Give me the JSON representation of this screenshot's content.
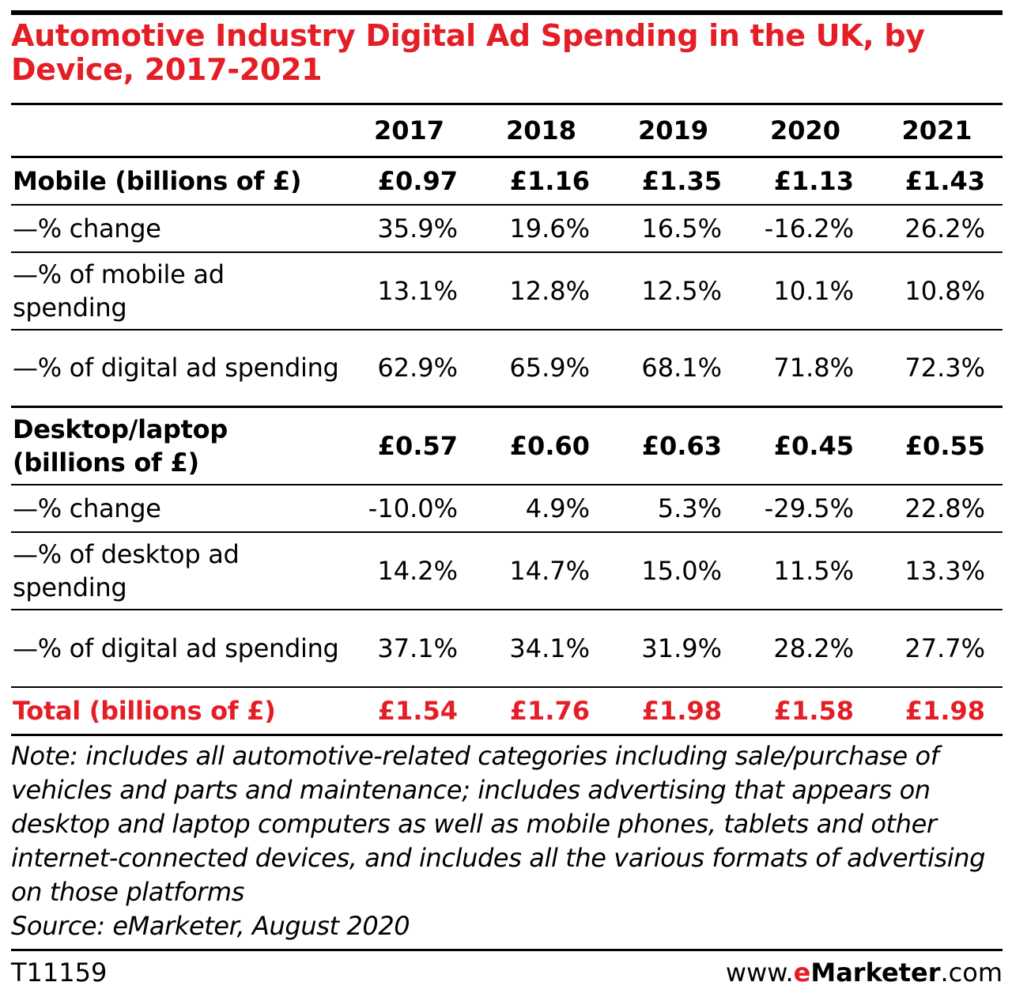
{
  "title": "Automotive Industry Digital Ad Spending in the UK, by Device, 2017-2021",
  "years": [
    "2017",
    "2018",
    "2019",
    "2020",
    "2021"
  ],
  "rows": [
    {
      "label": "Mobile (billions of £)",
      "values": [
        "£0.97",
        "£1.16",
        "£1.35",
        "£1.13",
        "£1.43"
      ]
    },
    {
      "label": "—% change",
      "values": [
        "35.9%",
        "19.6%",
        "16.5%",
        "-16.2%",
        "26.2%"
      ]
    },
    {
      "label": "—% of mobile ad spending",
      "values": [
        "13.1%",
        "12.8%",
        "12.5%",
        "10.1%",
        "10.8%"
      ]
    },
    {
      "label": "—% of digital ad spending",
      "values": [
        "62.9%",
        "65.9%",
        "68.1%",
        "71.8%",
        "72.3%"
      ]
    },
    {
      "label": "Desktop/laptop (billions of £)",
      "values": [
        "£0.57",
        "£0.60",
        "£0.63",
        "£0.45",
        "£0.55"
      ]
    },
    {
      "label": "—% change",
      "values": [
        "-10.0%",
        "4.9%",
        "5.3%",
        "-29.5%",
        "22.8%"
      ]
    },
    {
      "label": "—% of desktop ad spending",
      "values": [
        "14.2%",
        "14.7%",
        "15.0%",
        "11.5%",
        "13.3%"
      ]
    },
    {
      "label": "—% of digital ad spending",
      "values": [
        "37.1%",
        "34.1%",
        "31.9%",
        "28.2%",
        "27.7%"
      ]
    },
    {
      "label": "Total (billions of £)",
      "values": [
        "£1.54",
        "£1.76",
        "£1.98",
        "£1.58",
        "£1.98"
      ]
    }
  ],
  "note": "Note: includes all automotive-related categories including sale/purchase of vehicles and parts and maintenance; includes advertising that appears on desktop and laptop computers as well as mobile phones, tablets and other internet-connected devices, and includes all the various formats of advertising on those platforms",
  "source": "Source: eMarketer, August 2020",
  "chart_id": "T11159",
  "brand": {
    "prefix": "www.",
    "e": "e",
    "marketer": "Marketer",
    "suffix": ".com"
  },
  "colors": {
    "accent": "#e41e26",
    "text": "#000000",
    "background": "#ffffff"
  },
  "chart_data": {
    "type": "table",
    "title": "Automotive Industry Digital Ad Spending in the UK, by Device, 2017-2021",
    "columns": [
      "2017",
      "2018",
      "2019",
      "2020",
      "2021"
    ],
    "rows": [
      {
        "name": "Mobile (billions of £)",
        "values": [
          0.97,
          1.16,
          1.35,
          1.13,
          1.43
        ]
      },
      {
        "name": "Mobile —% change",
        "values": [
          35.9,
          19.6,
          16.5,
          -16.2,
          26.2
        ]
      },
      {
        "name": "Mobile —% of mobile ad spending",
        "values": [
          13.1,
          12.8,
          12.5,
          10.1,
          10.8
        ]
      },
      {
        "name": "Mobile —% of digital ad spending",
        "values": [
          62.9,
          65.9,
          68.1,
          71.8,
          72.3
        ]
      },
      {
        "name": "Desktop/laptop (billions of £)",
        "values": [
          0.57,
          0.6,
          0.63,
          0.45,
          0.55
        ]
      },
      {
        "name": "Desktop/laptop —% change",
        "values": [
          -10.0,
          4.9,
          5.3,
          -29.5,
          22.8
        ]
      },
      {
        "name": "Desktop/laptop —% of desktop ad spending",
        "values": [
          14.2,
          14.7,
          15.0,
          11.5,
          13.3
        ]
      },
      {
        "name": "Desktop/laptop —% of digital ad spending",
        "values": [
          37.1,
          34.1,
          31.9,
          28.2,
          27.7
        ]
      },
      {
        "name": "Total (billions of £)",
        "values": [
          1.54,
          1.76,
          1.98,
          1.58,
          1.98
        ]
      }
    ]
  }
}
